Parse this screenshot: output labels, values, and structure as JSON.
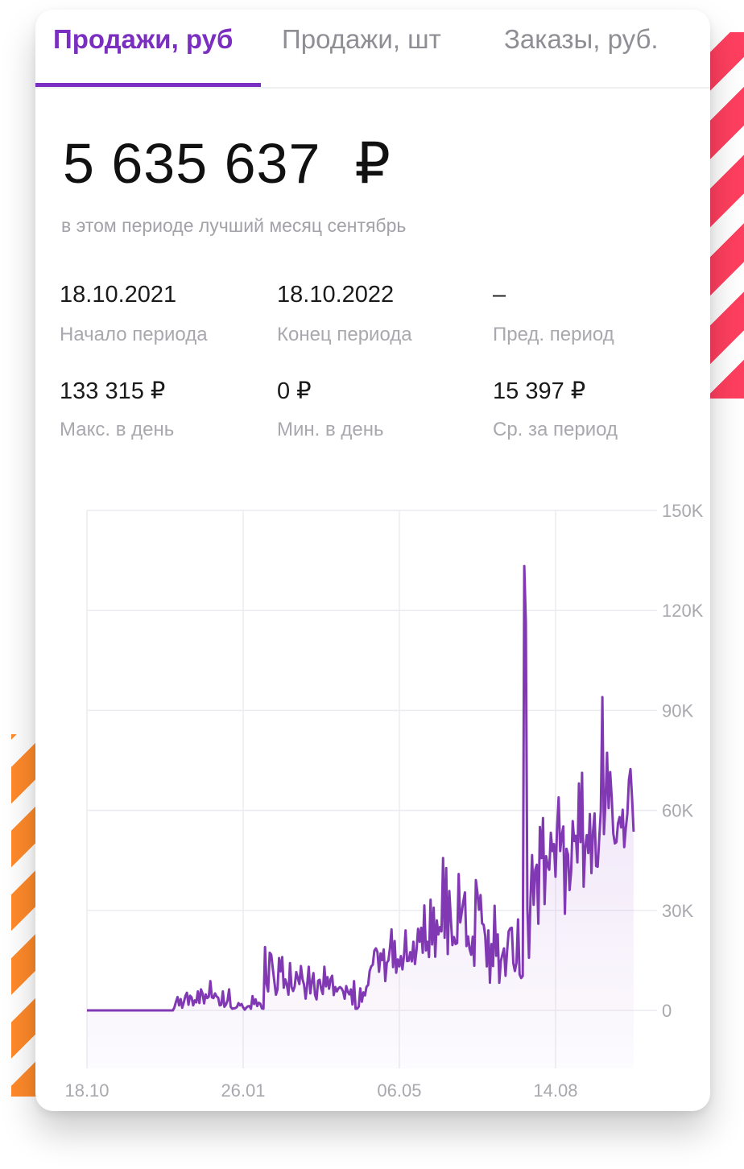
{
  "tabs": [
    {
      "label": "Продажи, руб"
    },
    {
      "label": "Продажи, шт"
    },
    {
      "label": "Заказы, руб."
    }
  ],
  "summary": {
    "total_value": "5 635 637",
    "currency": "₽",
    "subtitle": "в этом периоде лучший месяц сентябрь"
  },
  "stats": [
    {
      "value": "18.10.2021",
      "label": "Начало периода"
    },
    {
      "value": "18.10.2022",
      "label": "Конец периода"
    },
    {
      "value": "–",
      "label": "Пред. период"
    },
    {
      "value": "133 315 ₽",
      "label": "Макс. в день"
    },
    {
      "value": "0 ₽",
      "label": "Мин. в день"
    },
    {
      "value": "15 397 ₽",
      "label": "Ср. за период"
    }
  ],
  "colors": {
    "accent": "#7b2fc0",
    "line": "#8138b3",
    "stripe_red": "#ff3f5f",
    "stripe_orange": "#ff8a2a"
  },
  "chart_data": {
    "type": "area",
    "x_tick_labels": [
      "18.10",
      "26.01",
      "06.05",
      "14.08"
    ],
    "y_tick_labels": [
      "150K",
      "120K",
      "90K",
      "60K",
      "30K",
      "0"
    ],
    "ylim": [
      0,
      150000
    ],
    "y_ticks": [
      0,
      30000,
      60000,
      90000,
      120000,
      150000
    ],
    "x_ticks_day": [
      0,
      100,
      200,
      300
    ],
    "xlim_day": [
      0,
      365
    ],
    "grid": true,
    "series": [
      {
        "values": [
          0,
          0,
          0,
          0,
          0,
          0,
          0,
          0,
          0,
          0,
          0,
          0,
          0,
          0,
          0,
          0,
          0,
          0,
          0,
          0,
          0,
          0,
          0,
          0,
          0,
          0,
          0,
          0,
          0,
          0,
          0,
          0,
          0,
          0,
          0,
          0,
          0,
          0,
          0,
          0,
          0,
          0,
          0,
          0,
          0,
          0,
          0,
          0,
          0,
          0,
          0,
          0,
          0,
          0,
          0,
          0,
          900,
          2600,
          4000,
          1500,
          3400,
          800,
          2400,
          4300,
          5300,
          1700,
          4400,
          3900,
          1500,
          3000,
          2400,
          5700,
          2200,
          6300,
          5100,
          2100,
          4800,
          3700,
          4100,
          8800,
          3900,
          3700,
          5100,
          4200,
          3800,
          1500,
          1700,
          5700,
          1100,
          1700,
          3000,
          6300,
          1100,
          500,
          600,
          700,
          1000,
          2200,
          1500,
          1900,
          900,
          200,
          800,
          1200,
          1300,
          500,
          4300,
          1900,
          3300,
          1300,
          2300,
          2000,
          600,
          500,
          19000,
          7900,
          5700,
          17300,
          16700,
          12500,
          8600,
          4700,
          6300,
          15700,
          11700,
          16000,
          6800,
          9300,
          7700,
          4700,
          14200,
          7000,
          5800,
          7200,
          11500,
          9700,
          7900,
          13300,
          9400,
          7700,
          3500,
          7700,
          13100,
          5100,
          8600,
          11200,
          4700,
          3300,
          8900,
          9200,
          6400,
          4900,
          13100,
          7200,
          10000,
          6500,
          9400,
          10400,
          4600,
          7000,
          5700,
          6600,
          7000,
          6600,
          5700,
          3500,
          7300,
          5600,
          4800,
          6300,
          1800,
          8800,
          500,
          500,
          1100,
          6600,
          2600,
          5400,
          4500,
          7100,
          7600,
          11800,
          13200,
          13700,
          17900,
          18600,
          17500,
          11600,
          17100,
          15100,
          18300,
          8800,
          14300,
          15000,
          18800,
          24300,
          13000,
          20800,
          11300,
          15300,
          13200,
          16300,
          12300,
          16500,
          24000,
          14800,
          14900,
          17500,
          14700,
          20600,
          13900,
          18000,
          24500,
          20600,
          24800,
          17300,
          31500,
          18000,
          20600,
          16000,
          33200,
          19800,
          30800,
          16100,
          27000,
          22800,
          25000,
          23700,
          45700,
          21800,
          42700,
          16900,
          35800,
          27300,
          19600,
          22000,
          19900,
          20200,
          40900,
          26400,
          29500,
          32800,
          35400,
          19300,
          22200,
          18400,
          16700,
          22100,
          13400,
          39100,
          35300,
          30200,
          34600,
          26100,
          25700,
          22300,
          13200,
          24000,
          8300,
          19900,
          13300,
          31400,
          16400,
          22800,
          8300,
          14800,
          16800,
          18600,
          10400,
          17800,
          23700,
          24600,
          24800,
          14100,
          11800,
          14300,
          27300,
          10800,
          9700,
          10300,
          133300,
          116500,
          30500,
          15800,
          33700,
          46600,
          31700,
          42200,
          43700,
          26000,
          55000,
          45700,
          57700,
          31900,
          46300,
          43400,
          42200,
          53300,
          47800,
          49900,
          40100,
          54900,
          63900,
          47800,
          52500,
          55200,
          29000,
          48500,
          46800,
          36100,
          41600,
          56800,
          50800,
          52400,
          44400,
          68100,
          50500,
          71300,
          37100,
          48700,
          52600,
          47200,
          58900,
          41200,
          53600,
          59100,
          43300,
          43100,
          51600,
          59800,
          94000,
          52900,
          62500,
          77300,
          60700,
          71500,
          63700,
          53100,
          50100,
          50500,
          56100,
          58000,
          54900,
          60200,
          49000,
          54700,
          59000,
          69200,
          72400,
          63900,
          53600
        ]
      }
    ]
  }
}
